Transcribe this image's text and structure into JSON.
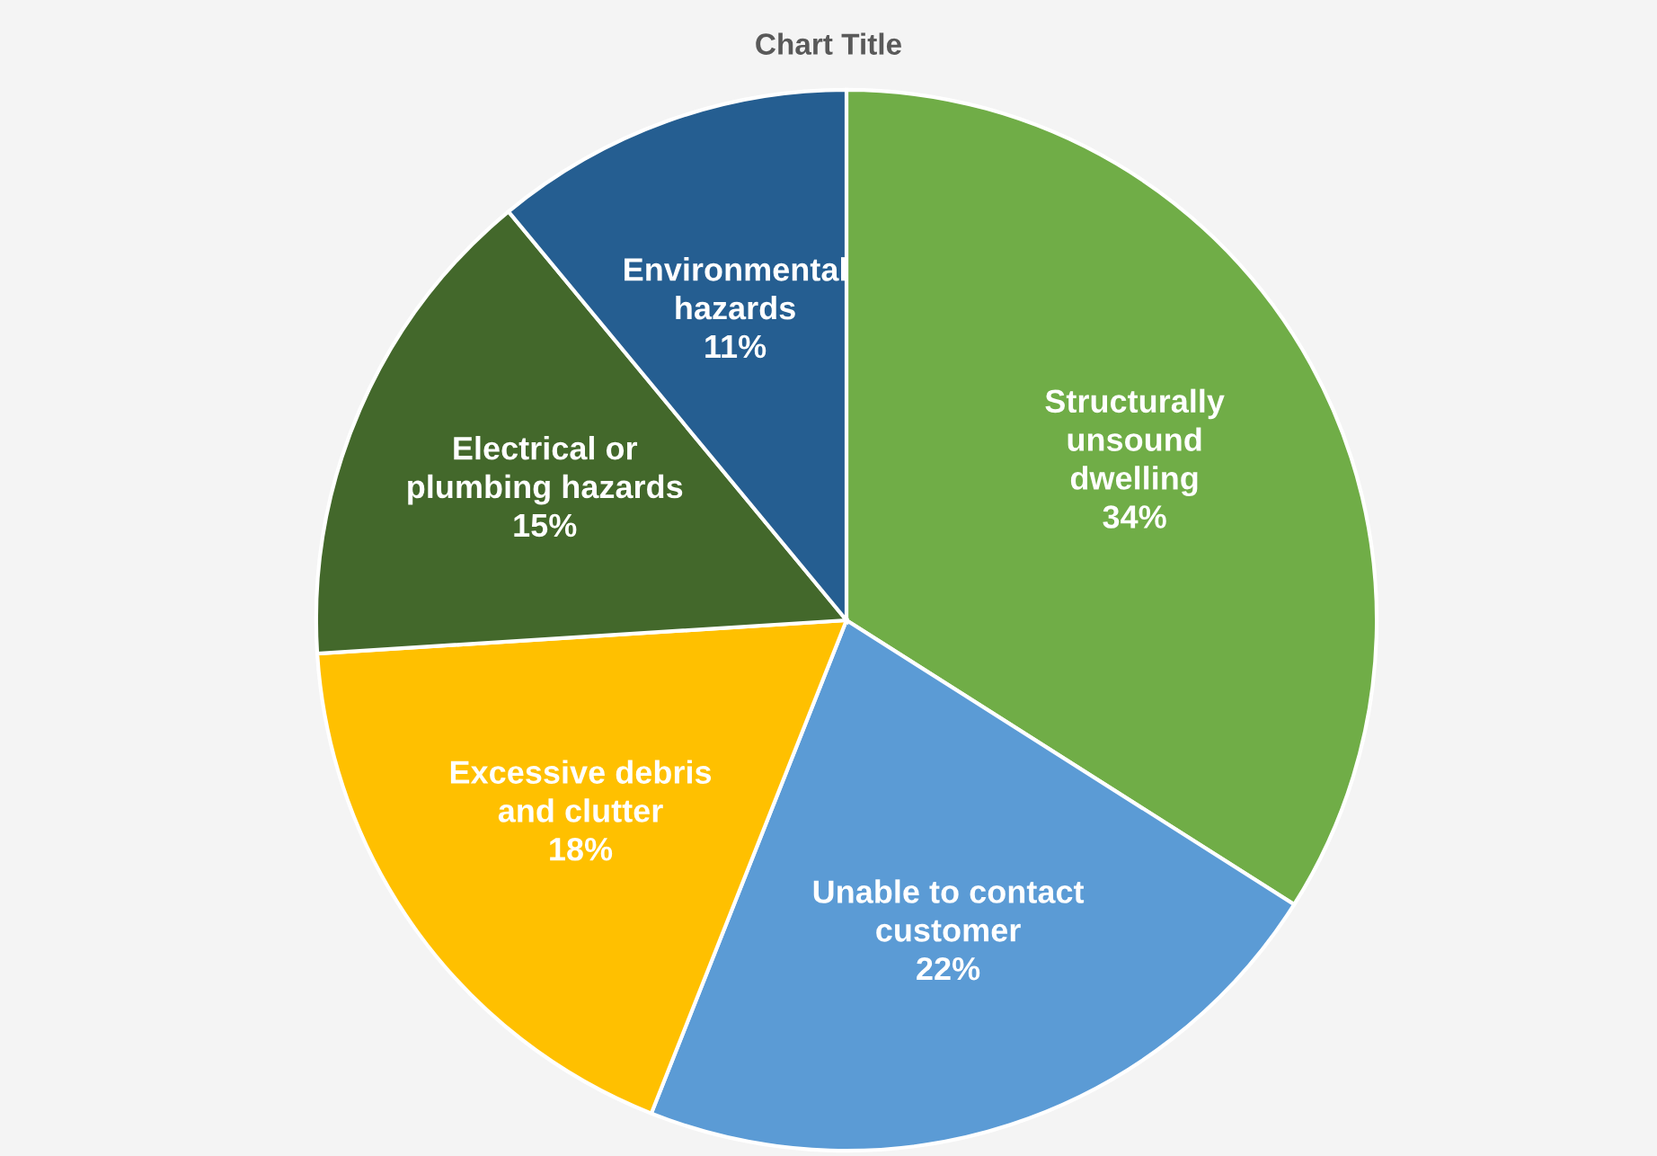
{
  "chart_data": {
    "type": "pie",
    "title": "Chart Title",
    "categories": [
      "Structurally\nunsound\ndwelling",
      "Unable to contact\ncustomer",
      "Excessive debris\nand clutter",
      "Electrical or\nplumbing hazards",
      "Environmental\nhazards"
    ],
    "values": [
      34,
      22,
      18,
      15,
      11
    ],
    "value_labels": [
      "34%",
      "22%",
      "18%",
      "15%",
      "11%"
    ],
    "colors": [
      "#70ad47",
      "#5b9bd5",
      "#ffc000",
      "#43682b",
      "#255e91"
    ],
    "legend": false
  }
}
